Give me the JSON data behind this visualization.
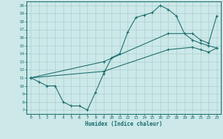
{
  "xlabel": "Humidex (Indice chaleur)",
  "xlim": [
    -0.5,
    23.5
  ],
  "ylim": [
    6.5,
    20.5
  ],
  "xticks": [
    0,
    1,
    2,
    3,
    4,
    5,
    6,
    7,
    8,
    9,
    10,
    11,
    12,
    13,
    14,
    15,
    16,
    17,
    18,
    19,
    20,
    21,
    22,
    23
  ],
  "yticks": [
    7,
    8,
    9,
    10,
    11,
    12,
    13,
    14,
    15,
    16,
    17,
    18,
    19,
    20
  ],
  "bg_color": "#cce8e8",
  "line_color": "#1a6b6b",
  "grid_color": "#aacfcf",
  "curve1_x": [
    0,
    1,
    2,
    3,
    4,
    5,
    6,
    7,
    8,
    9,
    10,
    11,
    12,
    13,
    14,
    15,
    16,
    17,
    18,
    19,
    20,
    21,
    22,
    23
  ],
  "curve1_y": [
    11,
    10.5,
    10,
    10,
    8,
    7.5,
    7.5,
    7,
    9.2,
    11.5,
    13.5,
    14,
    16.7,
    18.5,
    18.8,
    19.1,
    20,
    19.5,
    18.7,
    16.5,
    15.7,
    15.3,
    15,
    14.7
  ],
  "curve2_x": [
    0,
    9,
    17,
    20,
    21,
    22,
    23
  ],
  "curve2_y": [
    11,
    13.0,
    16.5,
    16.5,
    15.7,
    15.3,
    18.7
  ],
  "curve3_x": [
    0,
    9,
    17,
    20,
    21,
    22,
    23
  ],
  "curve3_y": [
    11,
    11.8,
    14.5,
    14.8,
    14.5,
    14.2,
    14.7
  ]
}
